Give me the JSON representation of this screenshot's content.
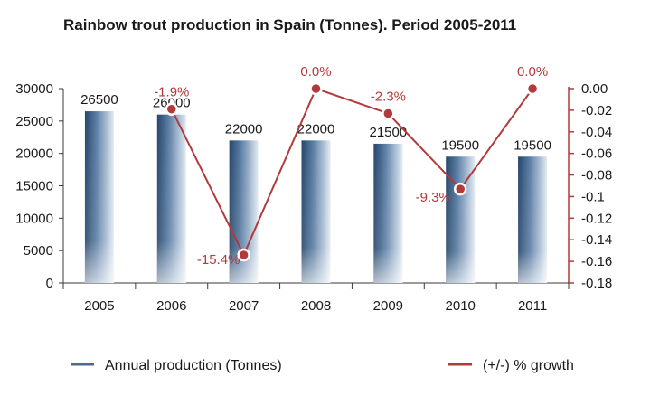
{
  "chart_data": {
    "type": "bar",
    "title": "Rainbow trout production in Spain (Tonnes). Period 2005-2011",
    "categories": [
      "2005",
      "2006",
      "2007",
      "2008",
      "2009",
      "2010",
      "2011"
    ],
    "series": [
      {
        "name": "Annual production (Tonnes)",
        "type": "bar",
        "axis": "left",
        "values": [
          26500,
          26000,
          22000,
          22000,
          21500,
          19500,
          19500
        ],
        "labels": [
          "26500",
          "26000",
          "22000",
          "22000",
          "21500",
          "19500",
          "19500"
        ],
        "color": "#4a6b8f"
      },
      {
        "name": "(+/-) % growth",
        "type": "line",
        "axis": "right",
        "values": [
          null,
          -0.019,
          -0.154,
          0.0,
          -0.023,
          -0.093,
          0.0
        ],
        "labels": [
          "",
          "-1.9%",
          "-15.4%",
          "0.0%",
          "-2.3%",
          "-9.3%",
          "0.0%"
        ],
        "color": "#b23a3a"
      }
    ],
    "y_left": {
      "lim": [
        0,
        30000
      ],
      "ticks": [
        "0",
        "5000",
        "10000",
        "15000",
        "20000",
        "25000",
        "30000"
      ]
    },
    "y_right": {
      "lim": [
        -0.18,
        0.0
      ],
      "ticks": [
        "0.00",
        "-0.02",
        "-0.04",
        "-0.06",
        "-0.08",
        "-0.1",
        "-0.12",
        "-0.14",
        "-0.16",
        "-0.18"
      ]
    },
    "legend_position": "bottom",
    "grid": false
  }
}
